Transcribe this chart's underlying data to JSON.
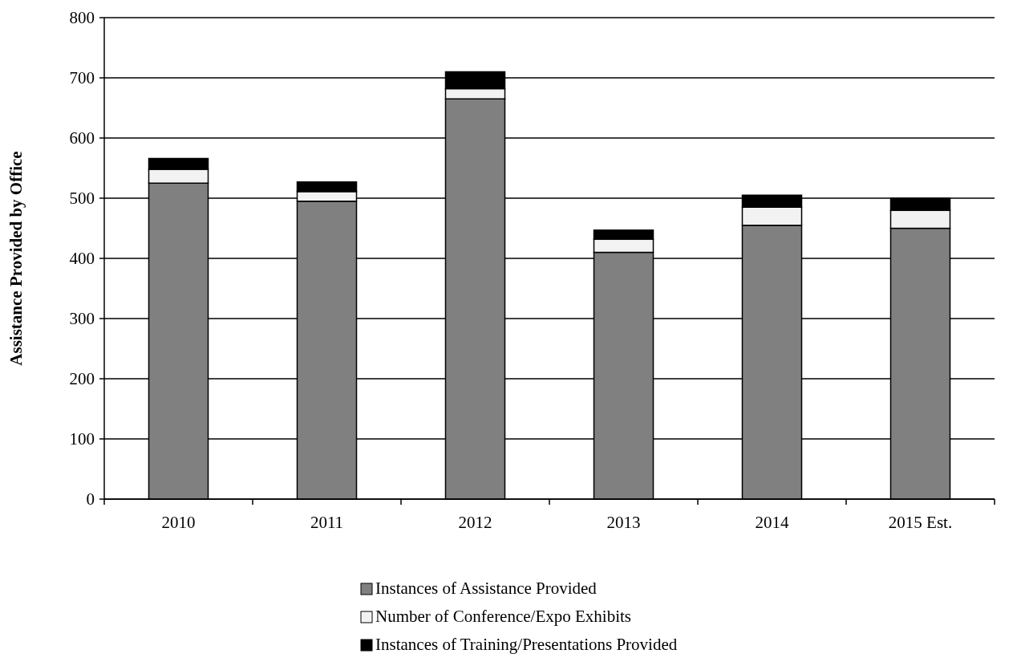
{
  "chart_data": {
    "type": "bar",
    "stacked": true,
    "ylabel": "Assistance Provided by Office",
    "categories": [
      "2010",
      "2011",
      "2012",
      "2013",
      "2014",
      "2015 Est."
    ],
    "series": [
      {
        "name": "Instances of Assistance Provided",
        "color": "#808080",
        "values": [
          525,
          495,
          665,
          410,
          455,
          450
        ]
      },
      {
        "name": "Number of Conference/Expo Exhibits",
        "color": "#f2f2f2",
        "values": [
          23,
          16,
          17,
          22,
          30,
          30
        ]
      },
      {
        "name": "Instances of Training/Presentations Provided",
        "color": "#000000",
        "values": [
          18,
          16,
          28,
          15,
          20,
          20
        ]
      }
    ],
    "ylim": [
      0,
      800
    ],
    "yticks": [
      0,
      100,
      200,
      300,
      400,
      500,
      600,
      700,
      800
    ],
    "grid": "y",
    "legend": "bottom"
  }
}
